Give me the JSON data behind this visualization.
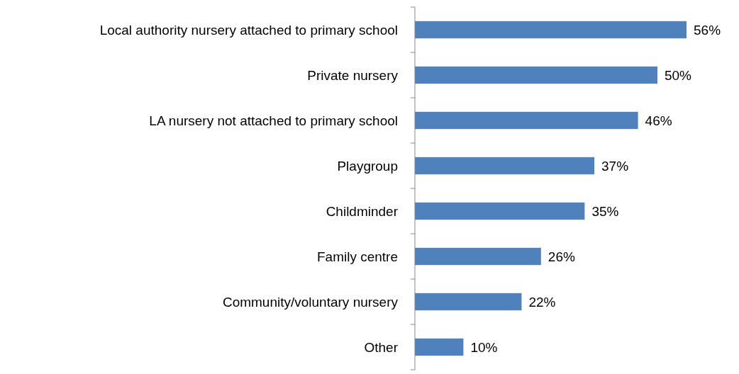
{
  "chart_data": {
    "type": "bar",
    "orientation": "horizontal",
    "categories": [
      "Local authority nursery attached to primary school",
      "Private nursery",
      "LA nursery not attached to primary school",
      "Playgroup",
      "Childminder",
      "Family centre",
      "Community/voluntary nursery",
      "Other"
    ],
    "values": [
      56,
      50,
      46,
      37,
      35,
      26,
      22,
      10
    ],
    "value_labels": [
      "56%",
      "50%",
      "46%",
      "37%",
      "35%",
      "26%",
      "22%",
      "10%"
    ],
    "color": "#4f81bd"
  }
}
